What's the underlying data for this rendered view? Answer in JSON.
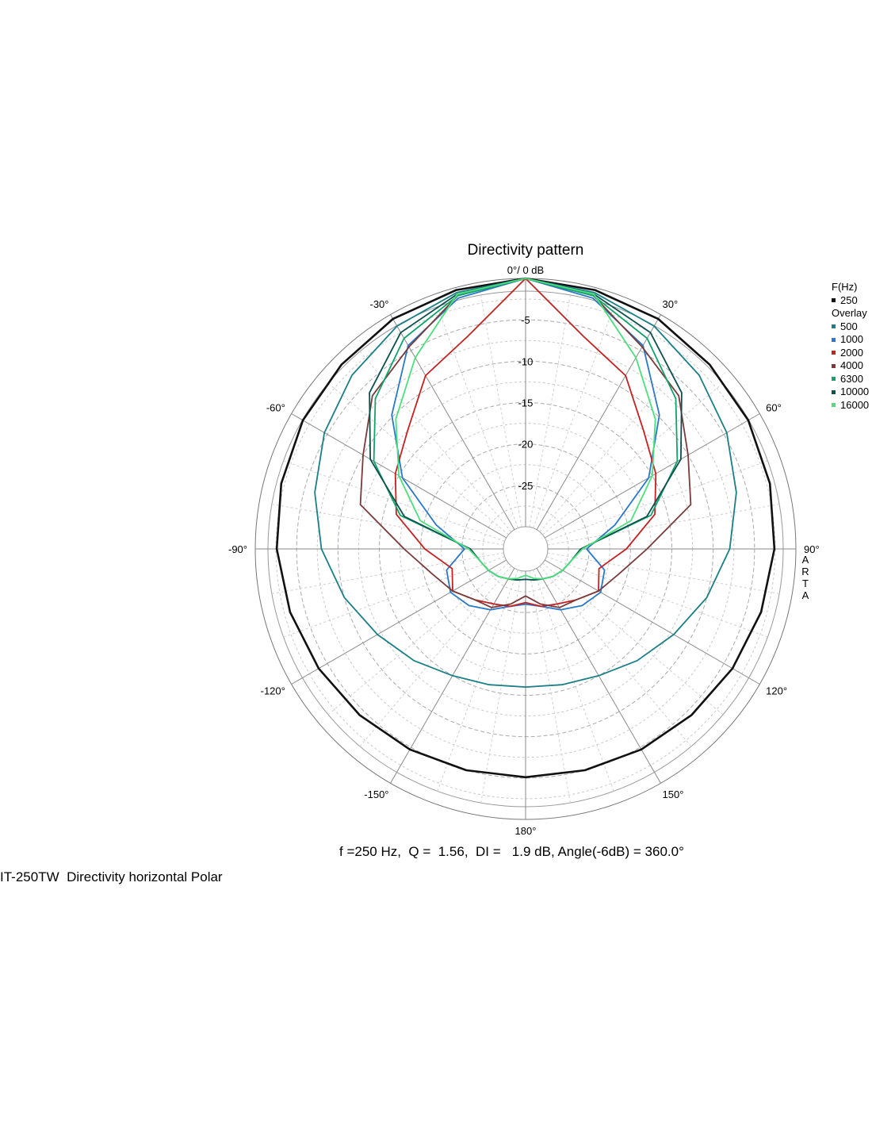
{
  "chart_data": {
    "type": "polar",
    "title": "Directivity pattern",
    "radial_unit_label": "0°/ 0 dB",
    "radial_ticks": [
      -5,
      -10,
      -15,
      -20,
      -25
    ],
    "r_range_db": [
      -30,
      0
    ],
    "angle_labels": [
      {
        "angle": 0,
        "text": "0°/ 0 dB"
      },
      {
        "angle": 30,
        "text": "30°"
      },
      {
        "angle": 60,
        "text": "60°"
      },
      {
        "angle": 90,
        "text": "90°"
      },
      {
        "angle": 120,
        "text": "120°"
      },
      {
        "angle": 150,
        "text": "150°"
      },
      {
        "angle": 180,
        "text": "180°"
      },
      {
        "angle": -150,
        "text": "-150°"
      },
      {
        "angle": -120,
        "text": "-120°"
      },
      {
        "angle": -90,
        "text": "-90°"
      },
      {
        "angle": -60,
        "text": "-60°"
      },
      {
        "angle": -30,
        "text": "-30°"
      }
    ],
    "side_text": "ARTA",
    "legend_title": "F(Hz)",
    "legend_overlay_label": "Overlay",
    "angles": [
      0,
      15,
      30,
      45,
      60,
      75,
      90,
      105,
      120,
      135,
      150,
      165,
      180
    ],
    "series": [
      {
        "name": "250",
        "color": "#111111",
        "values": [
          0,
          -0.3,
          -0.6,
          -1.2,
          -1.6,
          -2.1,
          -2.6,
          -3.2,
          -3.8,
          -4.3,
          -4.7,
          -5.0,
          -5.1
        ]
      },
      {
        "name": "500",
        "color": "#1a7f86",
        "values": [
          0,
          -0.6,
          -1.6,
          -3.0,
          -4.6,
          -6.3,
          -8.0,
          -10.0,
          -12.0,
          -13.6,
          -15.0,
          -15.7,
          -16.0
        ]
      },
      {
        "name": "1000",
        "color": "#2a78c8",
        "values": [
          0,
          -1.3,
          -4.3,
          -9.8,
          -15.5,
          -21.5,
          -25.3,
          -22.8,
          -22.2,
          -23.0,
          -24.2,
          -25.5,
          -26.0
        ]
      },
      {
        "name": "2000",
        "color": "#c42222",
        "values": [
          0,
          -6.0,
          -8.5,
          -12.5,
          -14.5,
          -16.5,
          -20.5,
          -23.5,
          -22.5,
          -24.0,
          -25.0,
          -25.5,
          -26.2
        ]
      },
      {
        "name": "4000",
        "color": "#7a3b3b",
        "values": [
          0,
          -1.0,
          -4.5,
          -6.5,
          -10.0,
          -12.0,
          -18.0,
          -21.0,
          -22.5,
          -24.0,
          -24.5,
          -25.8,
          -27.0
        ]
      },
      {
        "name": "6300",
        "color": "#12a36a",
        "values": [
          0,
          -1.0,
          -3.3,
          -7.0,
          -11.5,
          -17.0,
          -26.0,
          -27.0,
          -27.5,
          -28.0,
          -28.5,
          -28.8,
          -29.0
        ]
      },
      {
        "name": "10000",
        "color": "#0e4f4f",
        "values": [
          0,
          -0.8,
          -2.5,
          -6.0,
          -11.0,
          -17.5,
          -26.0,
          -27.0,
          -27.5,
          -28.0,
          -28.5,
          -28.8,
          -29.0
        ]
      },
      {
        "name": "16000",
        "color": "#4be07c",
        "values": [
          0,
          -0.8,
          -6.0,
          -10.5,
          -15.0,
          -19.5,
          -25.8,
          -27.0,
          -27.5,
          -28.0,
          -28.5,
          -29.0,
          -29.5
        ]
      }
    ]
  },
  "summary_text": "f =250 Hz,  Q =  1.56,  DI =   1.9 dB, Angle(-6dB) = 360.0°",
  "caption": "IT-250TW  Directivity horizontal Polar"
}
